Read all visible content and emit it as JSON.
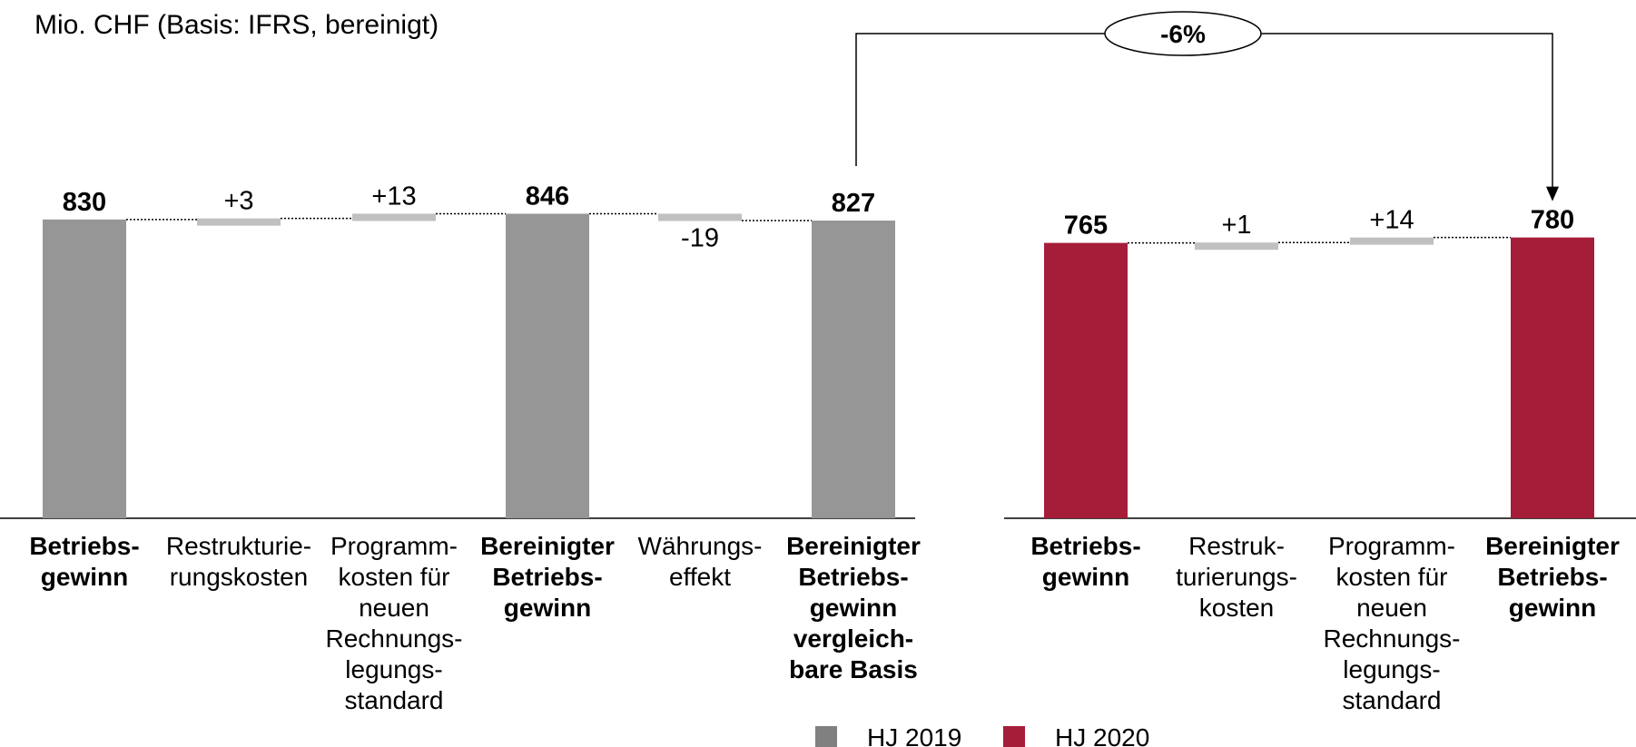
{
  "chart_data": [
    {
      "type": "bar",
      "variant": "waterfall",
      "subtitle": "Mio. CHF (Basis: IFRS, bereinigt)",
      "colors": {
        "total": "#969696",
        "delta": "#c0c0c0"
      },
      "ylim": [
        0,
        900
      ],
      "grid": false,
      "bars": [
        {
          "label": "Betriebs-\ngewinn",
          "value": 830,
          "value_label": "830",
          "kind": "total",
          "bold": true
        },
        {
          "label": "Restrukturie-\nrungskosten",
          "value": 3,
          "value_label": "+3",
          "kind": "delta",
          "bold": false
        },
        {
          "label": "Programm-\nkosten für\nneuen\nRechnungs-\nlegungs-\nstandard",
          "value": 13,
          "value_label": "+13",
          "kind": "delta",
          "bold": false
        },
        {
          "label": "Bereinigter\nBetriebs-\ngewinn",
          "value": 846,
          "value_label": "846",
          "kind": "total",
          "bold": true
        },
        {
          "label": "Währungs-\neffekt",
          "value": -19,
          "value_label": "-19",
          "kind": "delta",
          "bold": false
        },
        {
          "label": "Bereinigter\nBetriebs-\ngewinn\nvergleich-\nbare Basis",
          "value": 827,
          "value_label": "827",
          "kind": "total",
          "bold": true
        }
      ]
    },
    {
      "type": "bar",
      "variant": "waterfall",
      "colors": {
        "total": "#a51d39",
        "delta": "#c0c0c0"
      },
      "ylim": [
        0,
        900
      ],
      "grid": false,
      "bars": [
        {
          "label": "Betriebs-\ngewinn",
          "value": 765,
          "value_label": "765",
          "kind": "total",
          "bold": true
        },
        {
          "label": "Restruk-\nturierungs-\nkosten",
          "value": 1,
          "value_label": "+1",
          "kind": "delta",
          "bold": false
        },
        {
          "label": "Programm-\nkosten für\nneuen\nRechnungs-\nlegungs-\nstandard",
          "value": 14,
          "value_label": "+14",
          "kind": "delta",
          "bold": false
        },
        {
          "label": "Bereinigter\nBetriebs-\ngewinn",
          "value": 780,
          "value_label": "780",
          "kind": "total",
          "bold": true
        }
      ]
    }
  ],
  "comparison": {
    "label": "-6%"
  },
  "legend": {
    "position": "bottom-right",
    "items": [
      {
        "name": "HJ 2019",
        "color": "#808080"
      },
      {
        "name": "HJ 2020",
        "color": "#a51d39"
      }
    ]
  }
}
